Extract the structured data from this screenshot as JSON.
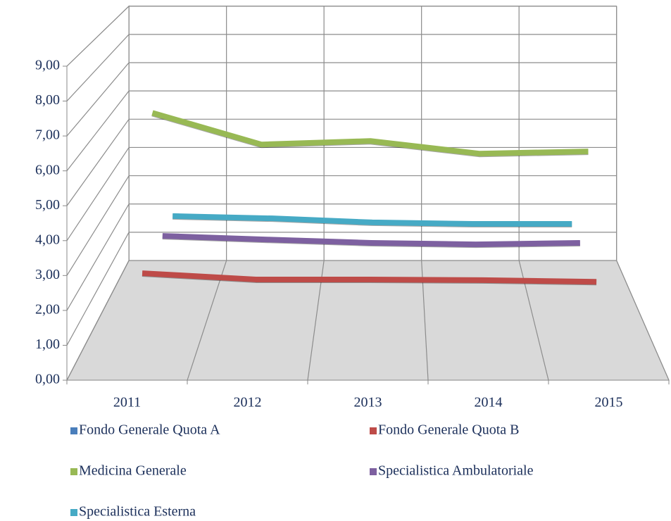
{
  "chart_data": {
    "type": "line3d",
    "categories": [
      "2011",
      "2012",
      "2013",
      "2014",
      "2015"
    ],
    "ylim": [
      0,
      9
    ],
    "yticks": [
      {
        "value": 0,
        "label": "0,00"
      },
      {
        "value": 1,
        "label": "1,00"
      },
      {
        "value": 2,
        "label": "2,00"
      },
      {
        "value": 3,
        "label": "3,00"
      },
      {
        "value": 4,
        "label": "4,00"
      },
      {
        "value": 5,
        "label": "5,00"
      },
      {
        "value": 6,
        "label": "6,00"
      },
      {
        "value": 7,
        "label": "7,00"
      },
      {
        "value": 8,
        "label": "8,00"
      },
      {
        "value": 9,
        "label": "9,00"
      }
    ],
    "grid": true,
    "series": [
      {
        "name": "Fondo Generale Quota A",
        "color": "#4a7ebb",
        "values": [
          null,
          null,
          null,
          null,
          null
        ]
      },
      {
        "name": "Fondo Generale Quota B",
        "color": "#be4b48",
        "values": [
          2.16,
          1.97,
          1.97,
          1.95,
          1.9
        ]
      },
      {
        "name": "Medicina Generale",
        "color": "#98b954",
        "values": [
          6.57,
          5.57,
          5.68,
          5.28,
          5.35
        ]
      },
      {
        "name": "Specialistica Ambulatoriale",
        "color": "#7d60a0",
        "values": [
          2.0,
          1.88,
          1.77,
          1.72,
          1.77
        ]
      },
      {
        "name": "Specialistica Esterna",
        "color": "#46aac5",
        "values": [
          1.95,
          1.87,
          1.73,
          1.68,
          1.68
        ]
      }
    ]
  }
}
